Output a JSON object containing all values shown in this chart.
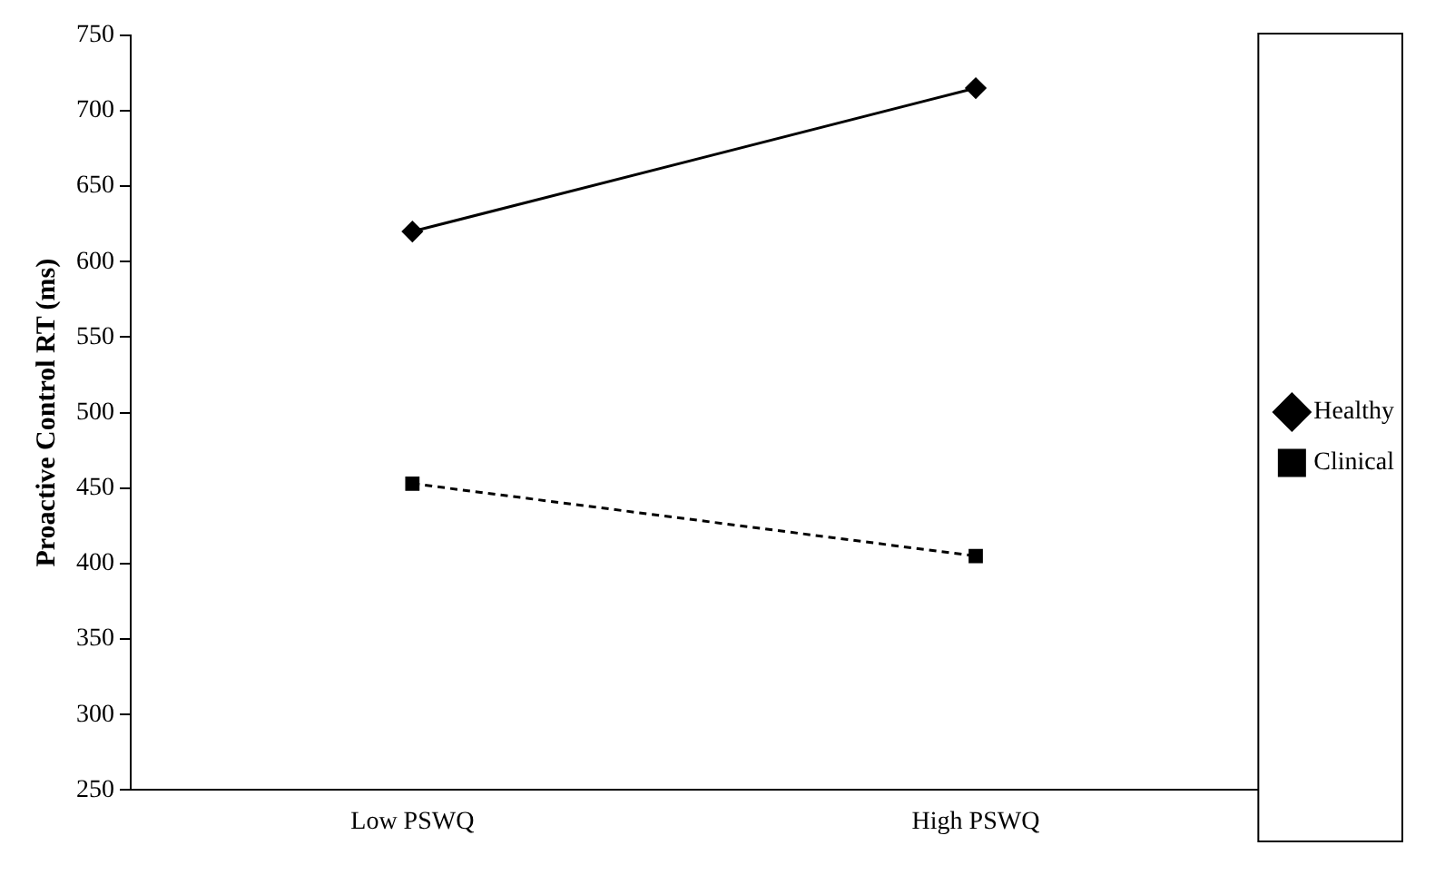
{
  "chart_data": {
    "type": "line",
    "ylabel": "Proactive Control RT (ms)",
    "categories": [
      "Low PSWQ",
      "High PSWQ"
    ],
    "series": [
      {
        "name": "Healthy",
        "color": "#000000",
        "values": [
          620,
          715
        ],
        "marker": "diamond",
        "line_style": "solid"
      },
      {
        "name": "Clinical",
        "color": "#000000",
        "values": [
          453,
          405
        ],
        "marker": "square",
        "line_style": "dashed"
      }
    ],
    "ylim": [
      250,
      750
    ],
    "yticks": [
      250,
      300,
      350,
      400,
      450,
      500,
      550,
      600,
      650,
      700,
      750
    ],
    "grid": false,
    "legend": "right"
  }
}
